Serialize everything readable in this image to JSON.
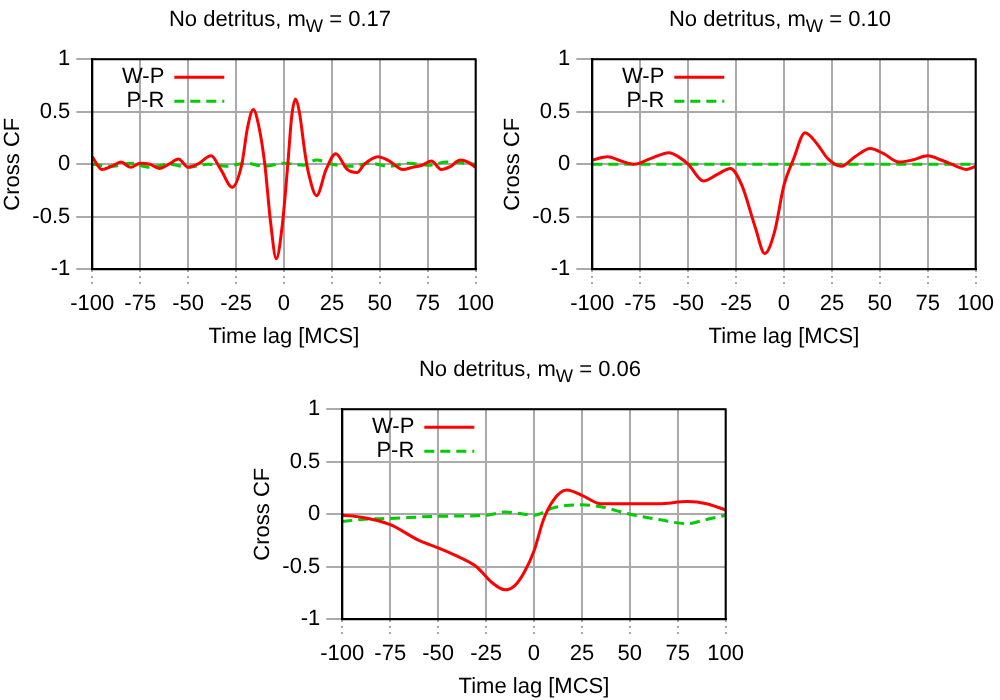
{
  "chart_data": [
    {
      "type": "line",
      "title": "No detritus,   m$_{W}$ = 0.17",
      "xlabel": "Time lag [MCS]",
      "ylabel": "Cross CF",
      "xlim": [
        -100,
        100
      ],
      "ylim": [
        -1,
        1
      ],
      "xticks": [
        -100,
        -75,
        -50,
        -25,
        0,
        25,
        50,
        75,
        100
      ],
      "yticks": [
        -1,
        -0.5,
        0,
        0.5,
        1
      ],
      "grid": true,
      "legend": "top left",
      "marker": "none",
      "series": [
        {
          "name": "W-P",
          "color": "#ff0000",
          "line_style": "solid",
          "x": [
            -100,
            -95,
            -90,
            -85,
            -80,
            -75,
            -70,
            -65,
            -60,
            -55,
            -50,
            -45,
            -38,
            -33,
            -27,
            -22,
            -19,
            -16,
            -13,
            -10,
            -7,
            -4,
            -1,
            2,
            4,
            6,
            8,
            11,
            13,
            17,
            22,
            27,
            33,
            38,
            42,
            49,
            55,
            62,
            67,
            72,
            77,
            82,
            87,
            92,
            96,
            100
          ],
          "values": [
            0.07,
            -0.05,
            -0.02,
            0.02,
            -0.03,
            0.01,
            0,
            -0.04,
            0,
            0.05,
            -0.03,
            0,
            0.08,
            -0.05,
            -0.22,
            0,
            0.35,
            0.52,
            0.35,
            0,
            -0.55,
            -0.9,
            -0.6,
            0,
            0.45,
            0.62,
            0.5,
            0.1,
            -0.1,
            -0.3,
            -0.05,
            0.1,
            -0.05,
            -0.08,
            0,
            0.07,
            0.03,
            -0.05,
            -0.03,
            -0.01,
            0.03,
            -0.05,
            -0.02,
            0.04,
            0.02,
            -0.03
          ]
        },
        {
          "name": "P-R",
          "color": "#00cc00",
          "line_style": "dashed",
          "x": [
            -100,
            -90,
            -80,
            -70,
            -60,
            -50,
            -40,
            -30,
            -20,
            -10,
            0,
            10,
            17,
            25,
            35,
            45,
            55,
            65,
            75,
            85,
            100
          ],
          "values": [
            0,
            -0.02,
            0.01,
            -0.03,
            0,
            -0.03,
            0,
            -0.02,
            0.01,
            -0.02,
            0.01,
            -0.01,
            0.04,
            0,
            -0.02,
            0.01,
            -0.02,
            0.01,
            -0.01,
            0.02,
            0
          ]
        }
      ]
    },
    {
      "type": "line",
      "title": "No detritus,   m$_{W}$ = 0.10",
      "xlabel": "Time lag [MCS]",
      "ylabel": "Cross CF",
      "xlim": [
        -100,
        100
      ],
      "ylim": [
        -1,
        1
      ],
      "xticks": [
        -100,
        -75,
        -50,
        -25,
        0,
        25,
        50,
        75,
        100
      ],
      "yticks": [
        -1,
        -0.5,
        0,
        0.5,
        1
      ],
      "grid": true,
      "legend": "top left",
      "marker": "none",
      "series": [
        {
          "name": "W-P",
          "color": "#ff0000",
          "line_style": "solid",
          "x": [
            -100,
            -92,
            -85,
            -78,
            -70,
            -60,
            -55,
            -50,
            -42,
            -35,
            -28,
            -22,
            -15,
            -10,
            -5,
            0,
            5,
            11,
            17,
            23,
            30,
            37,
            45,
            52,
            60,
            67,
            75,
            82,
            90,
            95,
            100
          ],
          "values": [
            0.04,
            0.07,
            0.03,
            0,
            0.05,
            0.11,
            0.07,
            0,
            -0.16,
            -0.1,
            -0.04,
            -0.2,
            -0.6,
            -0.85,
            -0.65,
            -0.2,
            0.05,
            0.3,
            0.2,
            0.05,
            -0.02,
            0.07,
            0.15,
            0.1,
            0.02,
            0.04,
            0.08,
            0.04,
            -0.02,
            -0.05,
            -0.02
          ]
        },
        {
          "name": "P-R",
          "color": "#00cc00",
          "line_style": "dashed",
          "x": [
            -100,
            -50,
            0,
            50,
            100
          ],
          "values": [
            0,
            0,
            0,
            0,
            0
          ]
        }
      ]
    },
    {
      "type": "line",
      "title": "No detritus,   m$_{W}$ = 0.06",
      "xlabel": "Time lag [MCS]",
      "ylabel": "Cross CF",
      "xlim": [
        -100,
        100
      ],
      "ylim": [
        -1,
        1
      ],
      "xticks": [
        -100,
        -75,
        -50,
        -25,
        0,
        25,
        50,
        75,
        100
      ],
      "yticks": [
        -1,
        -0.5,
        0,
        0.5,
        1
      ],
      "grid": true,
      "legend": "top left",
      "marker": "none",
      "series": [
        {
          "name": "W-P",
          "color": "#ff0000",
          "line_style": "solid",
          "x": [
            -100,
            -90,
            -75,
            -60,
            -50,
            -40,
            -30,
            -22,
            -15,
            -10,
            -5,
            0,
            5,
            10,
            17,
            25,
            35,
            50,
            65,
            80,
            90,
            100
          ],
          "values": [
            -0.01,
            -0.03,
            -0.1,
            -0.25,
            -0.32,
            -0.4,
            -0.5,
            -0.65,
            -0.72,
            -0.68,
            -0.55,
            -0.35,
            -0.05,
            0.13,
            0.23,
            0.18,
            0.1,
            0.1,
            0.1,
            0.12,
            0.1,
            0.04
          ]
        },
        {
          "name": "P-R",
          "color": "#00cc00",
          "line_style": "dashed",
          "x": [
            -100,
            -90,
            -75,
            -50,
            -25,
            -15,
            -5,
            0,
            10,
            25,
            35,
            50,
            65,
            80,
            90,
            100
          ],
          "values": [
            -0.07,
            -0.05,
            -0.04,
            -0.02,
            -0.01,
            0.02,
            0,
            -0.01,
            0.06,
            0.09,
            0.07,
            0,
            -0.05,
            -0.09,
            -0.05,
            -0.01
          ]
        }
      ]
    }
  ]
}
